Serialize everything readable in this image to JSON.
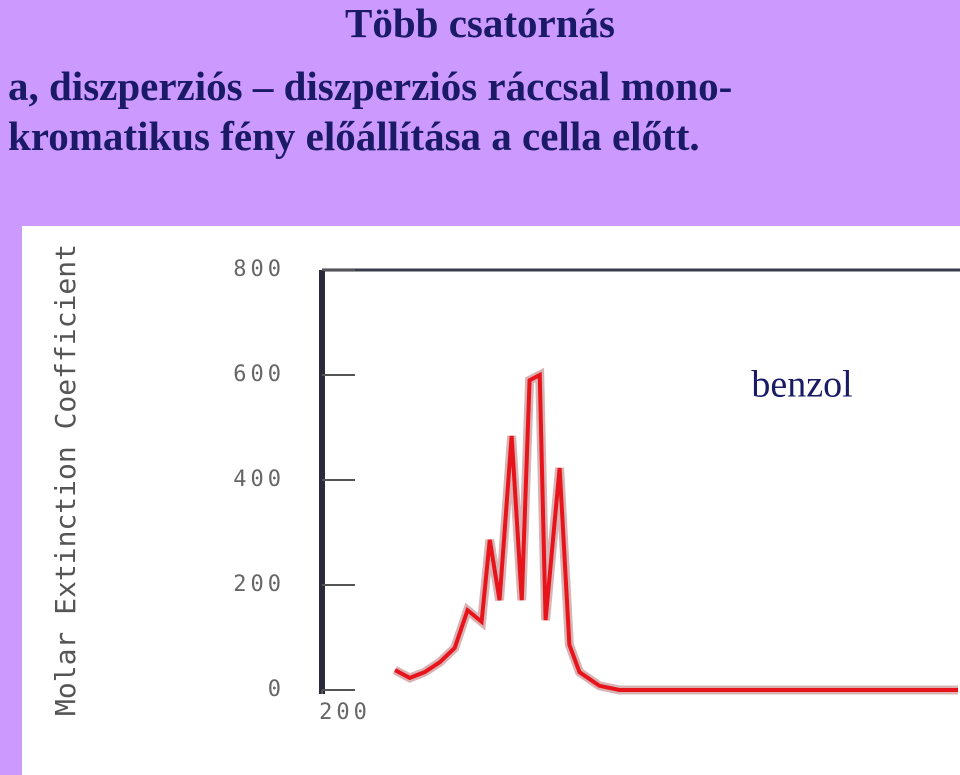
{
  "header": {
    "title": "Több csatornás",
    "lines": [
      "a, diszperziós – diszperziós ráccsal mono-",
      "kromatikus fény előállítása a cella előtt."
    ]
  },
  "chart_data": {
    "type": "line",
    "y_label": "Molar Extinction Coefficient",
    "annotation": "benzol",
    "x": [
      218.7,
      222.5,
      226.3,
      230.2,
      234,
      237.3,
      240.9,
      243,
      245.5,
      248.6,
      251.2,
      253.2,
      255.8,
      257.3,
      260.9,
      263.4,
      266,
      271.1,
      276.2,
      363
    ],
    "values": [
      38,
      23,
      34,
      53,
      80,
      152,
      130,
      286,
      171,
      484,
      171,
      590,
      600,
      133,
      423,
      86,
      34,
      8,
      0,
      0
    ],
    "color": "#e8141c",
    "xlim": [
      200,
      363
    ],
    "xticks": [
      200
    ],
    "ylim": [
      0,
      800
    ],
    "yticks": [
      0,
      200,
      400,
      600,
      800
    ]
  }
}
